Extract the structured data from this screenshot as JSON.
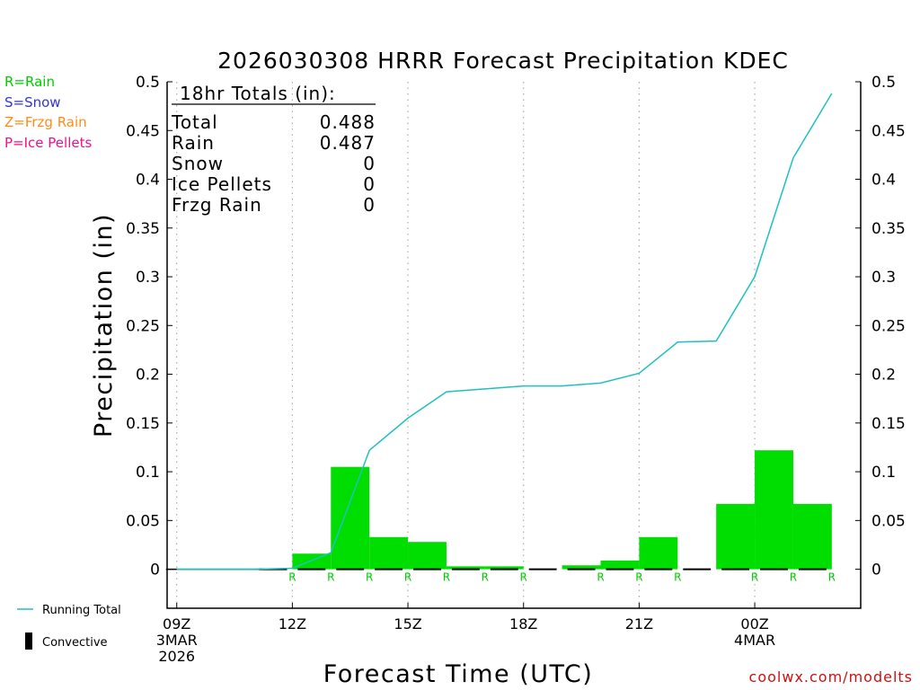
{
  "legend_keys": [
    {
      "text": "R=Rain",
      "color": "#00cc00"
    },
    {
      "text": "S=Snow",
      "color": "#3333dd"
    },
    {
      "text": "Z=Frzg Rain",
      "color": "#ff8c1a"
    },
    {
      "text": "P=Ice Pellets",
      "color": "#ee1188"
    }
  ],
  "side_legend": {
    "running_total": "Running Total",
    "convective": "Convective"
  },
  "site_label": "coolwx.com/modelts",
  "totals_box": {
    "title": "18hr Totals (in):",
    "rows": [
      {
        "label": "Total",
        "value": "0.488"
      },
      {
        "label": "Rain",
        "value": "0.487"
      },
      {
        "label": "Snow",
        "value": "0"
      },
      {
        "label": "Ice Pellets",
        "value": "0"
      },
      {
        "label": "Frzg Rain",
        "value": "0"
      }
    ]
  },
  "chart_data": {
    "type": "bar",
    "title": "2026030308 HRRR Forecast Precipitation KDEC",
    "xlabel": "Forecast Time (UTC)",
    "ylabel": "Precipitation (in)",
    "ylim": [
      -0.04,
      0.5
    ],
    "yticks": [
      0,
      0.05,
      0.1,
      0.15,
      0.2,
      0.25,
      0.3,
      0.35,
      0.4,
      0.45,
      0.5
    ],
    "ytick_labels": [
      "0",
      "0.05",
      "0.1",
      "0.15",
      "0.2",
      "0.25",
      "0.3",
      "0.35",
      "0.4",
      "0.45",
      "0.5"
    ],
    "xlim": [
      8.75,
      26.75
    ],
    "xticks": [
      {
        "x": 9,
        "lines": [
          "09Z",
          "3MAR",
          "2026"
        ]
      },
      {
        "x": 12,
        "lines": [
          "12Z"
        ]
      },
      {
        "x": 15,
        "lines": [
          "15Z"
        ]
      },
      {
        "x": 18,
        "lines": [
          "18Z"
        ]
      },
      {
        "x": 21,
        "lines": [
          "21Z"
        ]
      },
      {
        "x": 24,
        "lines": [
          "00Z",
          "4MAR"
        ]
      }
    ],
    "grid": "vertical dotted at x ticks",
    "series": [
      {
        "name": "Rain",
        "color": "#00dd00",
        "bars": [
          {
            "x": 13,
            "value": 0.016
          },
          {
            "x": 14,
            "value": 0.105
          },
          {
            "x": 15,
            "value": 0.033
          },
          {
            "x": 16,
            "value": 0.028
          },
          {
            "x": 17,
            "value": 0.003
          },
          {
            "x": 18,
            "value": 0.003
          },
          {
            "x": 20,
            "value": 0.004
          },
          {
            "x": 21,
            "value": 0.009
          },
          {
            "x": 22,
            "value": 0.033
          },
          {
            "x": 24,
            "value": 0.067
          },
          {
            "x": 25,
            "value": 0.122
          },
          {
            "x": 26,
            "value": 0.067
          }
        ]
      },
      {
        "name": "Running Total",
        "color": "#20c0c0",
        "points": [
          [
            9,
            0
          ],
          [
            10,
            0
          ],
          [
            11,
            0
          ],
          [
            12,
            0.001
          ],
          [
            13,
            0.017
          ],
          [
            14,
            0.122
          ],
          [
            15,
            0.155
          ],
          [
            16,
            0.182
          ],
          [
            17,
            0.185
          ],
          [
            18,
            0.188
          ],
          [
            19,
            0.188
          ],
          [
            20,
            0.191
          ],
          [
            21,
            0.201
          ],
          [
            22,
            0.233
          ],
          [
            23,
            0.234
          ],
          [
            24,
            0.3
          ],
          [
            25,
            0.422
          ],
          [
            26,
            0.488
          ]
        ]
      }
    ],
    "type_markers": {
      "symbol": "R",
      "color": "#00cc00",
      "x": [
        12,
        13,
        14,
        15,
        16,
        17,
        18,
        20,
        21,
        22,
        24,
        25,
        26
      ]
    },
    "convective": {
      "color": "#000000",
      "x": [
        12,
        13,
        14,
        15,
        16,
        17,
        18,
        19,
        20,
        21,
        22,
        23,
        24,
        25,
        26
      ]
    }
  }
}
